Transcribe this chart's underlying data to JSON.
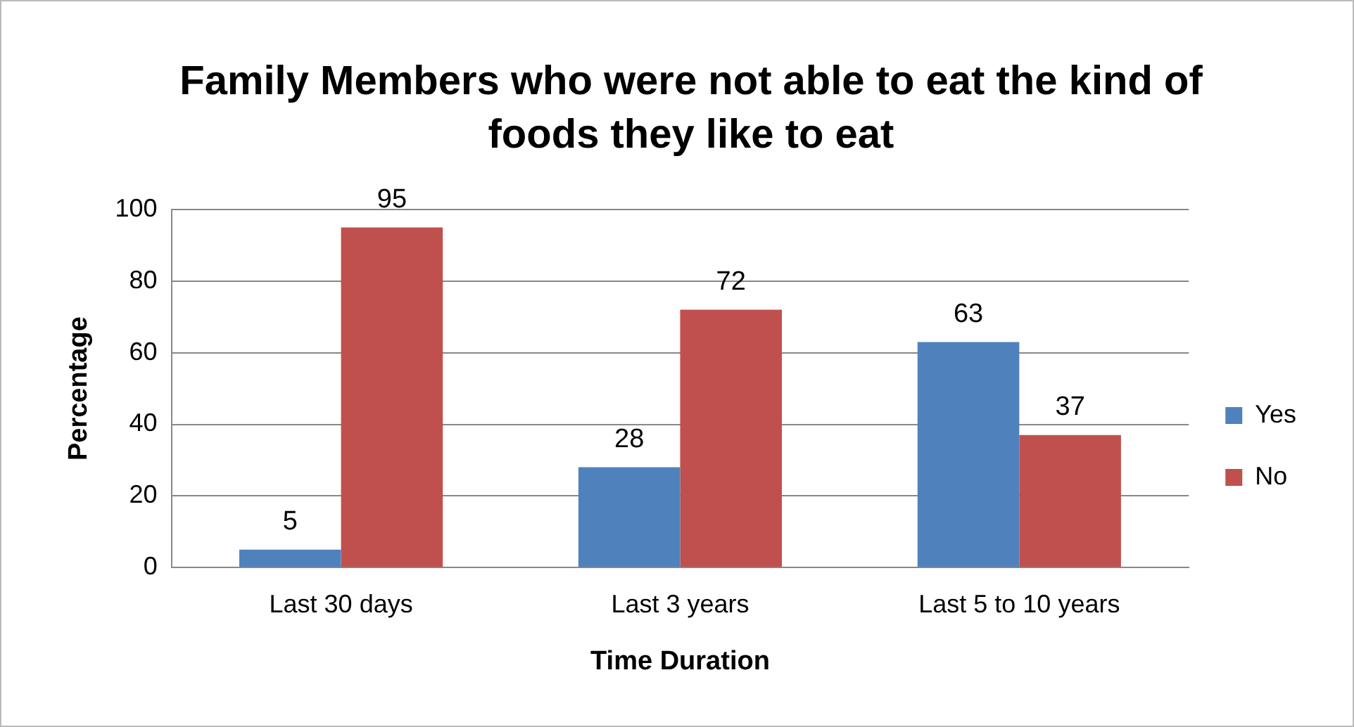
{
  "chart_data": {
    "type": "bar",
    "title": "Family Members who were not able to eat the kind of foods they like to eat",
    "xlabel": "Time Duration",
    "ylabel": "Percentage",
    "categories": [
      "Last 30 days",
      "Last 3 years",
      "Last 5 to 10 years"
    ],
    "series": [
      {
        "name": "Yes",
        "color": "#4f81bd",
        "values": [
          5,
          28,
          63
        ]
      },
      {
        "name": "No",
        "color": "#c0504d",
        "values": [
          95,
          72,
          37
        ]
      }
    ],
    "ylim": [
      0,
      100
    ],
    "yticks": [
      0,
      20,
      40,
      60,
      80,
      100
    ],
    "grid": "y",
    "legend": "right",
    "data_labels": true
  }
}
